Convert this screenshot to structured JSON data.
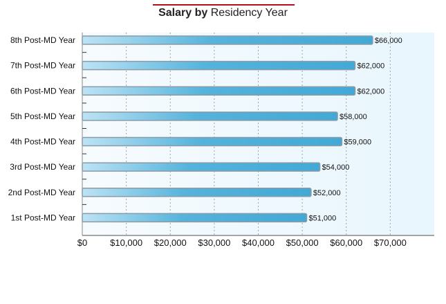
{
  "chart_data": {
    "type": "bar",
    "orientation": "horizontal",
    "title": "Salary by Residency Year",
    "title_bold_part": "Salary by",
    "title_regular_part": "Residency Year",
    "xlabel": "",
    "ylabel": "",
    "categories": [
      "8th Post-MD Year",
      "7th Post-MD Year",
      "6th Post-MD Year",
      "5th Post-MD Year",
      "4th Post-MD Year",
      "3rd Post-MD Year",
      "2nd Post-MD Year",
      "1st Post-MD Year"
    ],
    "values": [
      66000,
      62000,
      62000,
      58000,
      59000,
      54000,
      52000,
      51000
    ],
    "value_labels": [
      "$66,000",
      "$62,000",
      "$62,000",
      "$58,000",
      "$59,000",
      "$54,000",
      "$52,000",
      "$51,000"
    ],
    "xlim": [
      0,
      80000
    ],
    "x_ticks": [
      0,
      10000,
      20000,
      30000,
      40000,
      50000,
      60000,
      70000
    ],
    "x_tick_labels": [
      "$0",
      "$10,000",
      "$20,000",
      "$30,000",
      "$40,000",
      "$50,000",
      "$60,000",
      "$70,000"
    ],
    "grid": true,
    "legend": "none",
    "colors": {
      "bar_start": "#b9e2f4",
      "bar_end": "#44aad6",
      "bar_border": "#8a9ba5",
      "plot_bg": "#eef8fd",
      "title_rule": "#b30f1d"
    }
  }
}
